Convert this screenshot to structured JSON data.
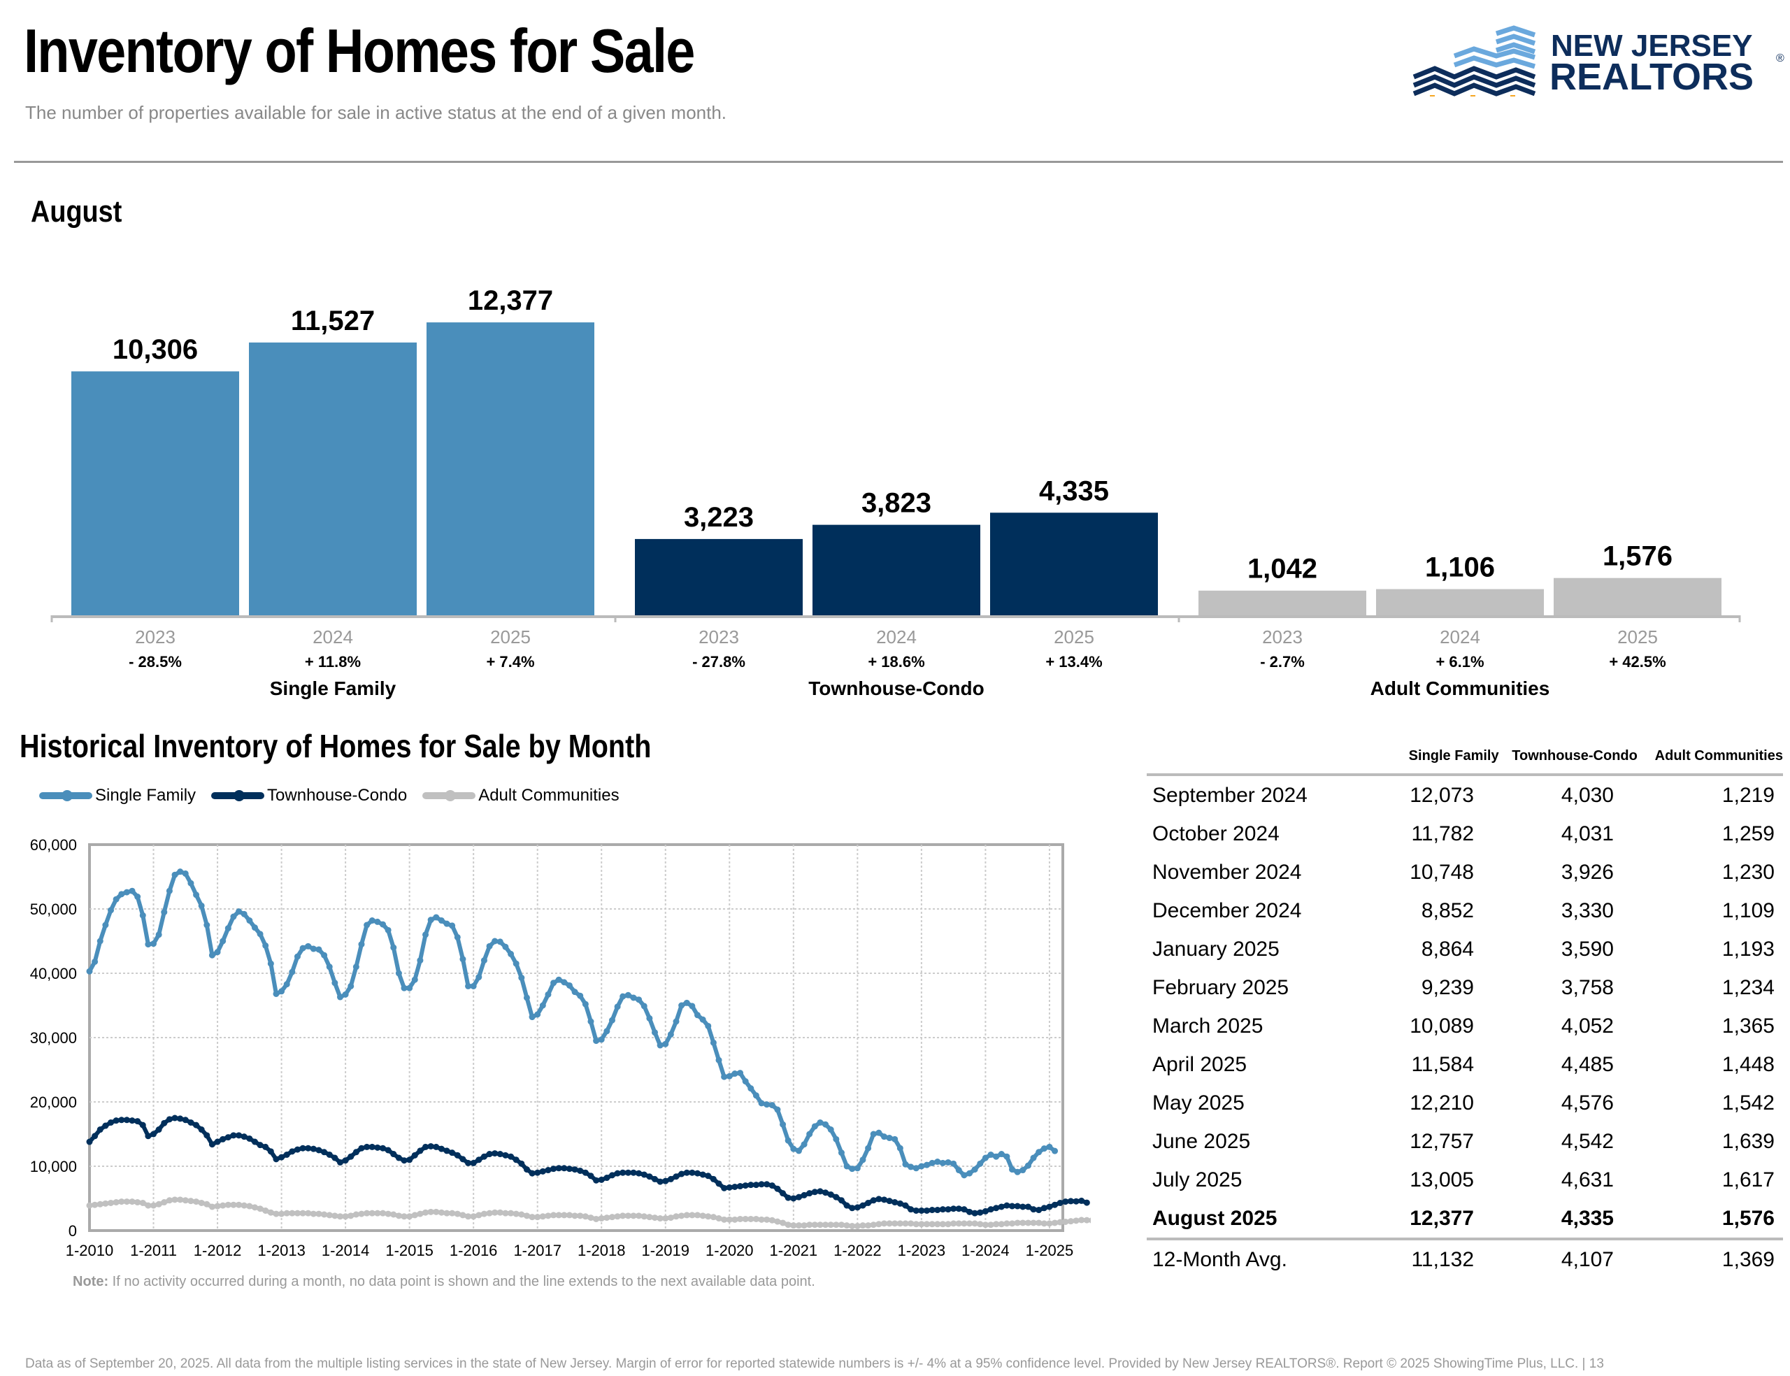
{
  "header": {
    "title": "Inventory of Homes for Sale",
    "subtitle": "The number of properties available for sale in active status at the end of a given month.",
    "logo_line1": "NEW JERSEY",
    "logo_line2": "REALTORS",
    "logo_mark": "®"
  },
  "colors": {
    "single_family": "#4a8ebb",
    "townhouse_condo": "#002f5b",
    "adult_communities": "#c0c0c0",
    "logo_navy": "#0d2d5b",
    "logo_light": "#6aa8dd",
    "logo_gold": "#f5a623"
  },
  "section_month": "August",
  "historical_title": "Historical Inventory of Homes for Sale by Month",
  "note_label": "Note:",
  "note_text": "If no activity occurred during a month, no data point is shown and the line extends to the next available data point.",
  "footer": "Data as of September 20, 2025. All data from the multiple listing services in the state of New Jersey. Margin of error for reported statewide numbers is +/- 4% at a 95% confidence level. Provided by New Jersey REALTORS®. Report © 2025 ShowingTime Plus, LLC. |  13",
  "chart_data": [
    {
      "type": "bar",
      "title": "August",
      "groups": [
        {
          "name": "Single Family",
          "color": "#4a8ebb",
          "categories": [
            "2023",
            "2024",
            "2025"
          ],
          "values": [
            10306,
            11527,
            12377
          ],
          "labels": [
            "10,306",
            "11,527",
            "12,377"
          ],
          "changes": [
            "- 28.5%",
            "+ 11.8%",
            "+ 7.4%"
          ]
        },
        {
          "name": "Townhouse-Condo",
          "color": "#002f5b",
          "categories": [
            "2023",
            "2024",
            "2025"
          ],
          "values": [
            3223,
            3823,
            4335
          ],
          "labels": [
            "3,223",
            "3,823",
            "4,335"
          ],
          "changes": [
            "- 27.8%",
            "+ 18.6%",
            "+ 13.4%"
          ]
        },
        {
          "name": "Adult Communities",
          "color": "#c0c0c0",
          "categories": [
            "2023",
            "2024",
            "2025"
          ],
          "values": [
            1042,
            1106,
            1576
          ],
          "labels": [
            "1,042",
            "1,106",
            "1,576"
          ],
          "changes": [
            "- 2.7%",
            "+ 6.1%",
            "+ 42.5%"
          ]
        }
      ],
      "ylim": [
        0,
        13000
      ]
    },
    {
      "type": "line",
      "title": "Historical Inventory of Homes for Sale by Month",
      "x_start": "1-2010",
      "x_end": "8-2025",
      "xticks": [
        "1-2010",
        "1-2011",
        "1-2012",
        "1-2013",
        "1-2014",
        "1-2015",
        "1-2016",
        "1-2017",
        "1-2018",
        "1-2019",
        "1-2020",
        "1-2021",
        "1-2022",
        "1-2023",
        "1-2024",
        "1-2025"
      ],
      "yticks": [
        "0",
        "10,000",
        "20,000",
        "30,000",
        "40,000",
        "50,000",
        "60,000"
      ],
      "ylim": [
        0,
        60000
      ],
      "legend": "top-left",
      "grid": true,
      "series": [
        {
          "name": "Single Family",
          "color": "#4a8ebb",
          "values": [
            40300,
            41800,
            45000,
            47500,
            49800,
            51500,
            52300,
            52600,
            52800,
            51900,
            49000,
            44500,
            44600,
            46000,
            49500,
            52800,
            55300,
            55800,
            55500,
            54000,
            52200,
            50500,
            47500,
            42800,
            43300,
            45000,
            47000,
            48800,
            49600,
            49200,
            48200,
            47100,
            46100,
            44300,
            41500,
            36800,
            37200,
            38300,
            40200,
            42600,
            43900,
            44200,
            43800,
            43700,
            42800,
            41000,
            38500,
            36300,
            36700,
            38000,
            41000,
            44500,
            47500,
            48200,
            48000,
            47600,
            46700,
            44000,
            40000,
            37700,
            37700,
            39000,
            42000,
            46000,
            48300,
            48700,
            48200,
            47700,
            47400,
            45600,
            42200,
            38000,
            38000,
            39400,
            42000,
            44200,
            45000,
            44900,
            44100,
            43000,
            41500,
            39300,
            36200,
            33200,
            33600,
            35000,
            36700,
            38500,
            39000,
            38600,
            38100,
            37100,
            36500,
            35200,
            32500,
            29500,
            29700,
            31000,
            32700,
            34800,
            36400,
            36600,
            36200,
            35900,
            34900,
            33000,
            30800,
            28800,
            29000,
            30500,
            32500,
            35000,
            35400,
            34900,
            33500,
            32800,
            31800,
            29200,
            26500,
            23900,
            24000,
            24400,
            24500,
            23200,
            22100,
            21000,
            19800,
            19600,
            19500,
            18800,
            16500,
            14000,
            12700,
            12400,
            13400,
            15000,
            16200,
            16800,
            16500,
            15700,
            14200,
            12100,
            10000,
            9600,
            9700,
            11000,
            12800,
            15000,
            15200,
            14600,
            14400,
            14200,
            12800,
            10300,
            9900,
            9700,
            10000,
            10200,
            10500,
            10700,
            10500,
            10600,
            10400,
            9400,
            8600,
            8900,
            9500,
            10400,
            11300,
            11800,
            11500,
            11900,
            11500,
            9500,
            9100,
            9400,
            10100,
            11300,
            12200,
            12757,
            13005,
            12377
          ]
        },
        {
          "name": "Townhouse-Condo",
          "color": "#002f5b",
          "values": [
            13800,
            14700,
            15700,
            16300,
            16800,
            17100,
            17200,
            17200,
            17100,
            17000,
            16400,
            14700,
            15000,
            15700,
            16700,
            17300,
            17500,
            17400,
            17200,
            16800,
            16400,
            15700,
            14800,
            13400,
            13800,
            14200,
            14500,
            14800,
            14800,
            14600,
            14300,
            13800,
            13300,
            13000,
            12300,
            11100,
            11400,
            11800,
            12300,
            12600,
            12800,
            12800,
            12700,
            12500,
            12200,
            11800,
            11300,
            10600,
            10900,
            11500,
            12200,
            12800,
            13000,
            13000,
            12900,
            12800,
            12500,
            11900,
            11300,
            10900,
            11000,
            11700,
            12400,
            13000,
            13100,
            13000,
            12700,
            12400,
            12100,
            11700,
            11100,
            10500,
            10500,
            11000,
            11500,
            11900,
            12000,
            11900,
            11700,
            11500,
            11000,
            10400,
            9500,
            8900,
            9000,
            9200,
            9400,
            9600,
            9700,
            9700,
            9600,
            9500,
            9300,
            9000,
            8500,
            7800,
            7900,
            8200,
            8600,
            8900,
            9000,
            9000,
            9000,
            8900,
            8700,
            8400,
            8000,
            7600,
            7700,
            8000,
            8400,
            8800,
            9000,
            9000,
            8900,
            8700,
            8500,
            8000,
            7300,
            6600,
            6700,
            6800,
            6900,
            7000,
            7100,
            7100,
            7200,
            7200,
            7000,
            6500,
            5800,
            5100,
            5000,
            5200,
            5500,
            5800,
            6000,
            6100,
            5900,
            5600,
            5200,
            4700,
            3900,
            3500,
            3600,
            3900,
            4300,
            4700,
            4900,
            4800,
            4600,
            4400,
            4200,
            3900,
            3300,
            3100,
            3100,
            3100,
            3200,
            3200,
            3300,
            3300,
            3400,
            3400,
            3300,
            2900,
            2700,
            2800,
            3000,
            3300,
            3500,
            3700,
            3900,
            3800,
            3800,
            3700,
            3700,
            3300,
            3200,
            3500,
            3700,
            4000,
            4300,
            4500,
            4576,
            4542,
            4631,
            4335
          ]
        },
        {
          "name": "Adult Communities",
          "color": "#c0c0c0",
          "values": [
            3900,
            4000,
            4100,
            4200,
            4300,
            4400,
            4500,
            4500,
            4500,
            4400,
            4300,
            3900,
            3900,
            4100,
            4400,
            4700,
            4800,
            4800,
            4700,
            4600,
            4500,
            4300,
            4100,
            3700,
            3800,
            3900,
            4000,
            4000,
            4000,
            3900,
            3800,
            3600,
            3400,
            3100,
            2800,
            2600,
            2600,
            2700,
            2700,
            2700,
            2700,
            2700,
            2600,
            2600,
            2500,
            2400,
            2300,
            2200,
            2200,
            2300,
            2500,
            2600,
            2700,
            2700,
            2700,
            2700,
            2600,
            2500,
            2300,
            2200,
            2200,
            2400,
            2600,
            2800,
            2900,
            2900,
            2800,
            2700,
            2700,
            2600,
            2400,
            2200,
            2200,
            2400,
            2600,
            2700,
            2800,
            2800,
            2700,
            2700,
            2600,
            2500,
            2300,
            2100,
            2100,
            2200,
            2300,
            2400,
            2400,
            2400,
            2400,
            2300,
            2300,
            2200,
            2000,
            1800,
            1900,
            2000,
            2100,
            2200,
            2300,
            2300,
            2300,
            2300,
            2200,
            2100,
            2000,
            1900,
            1900,
            2000,
            2200,
            2300,
            2400,
            2400,
            2400,
            2300,
            2200,
            2100,
            1900,
            1700,
            1700,
            1700,
            1800,
            1800,
            1800,
            1800,
            1700,
            1700,
            1600,
            1400,
            1200,
            900,
            800,
            800,
            800,
            900,
            900,
            900,
            900,
            900,
            900,
            900,
            800,
            700,
            700,
            800,
            800,
            900,
            1000,
            1100,
            1100,
            1100,
            1100,
            1100,
            1100,
            1000,
            1000,
            1000,
            1000,
            1000,
            1000,
            1000,
            1100,
            1100,
            1100,
            1100,
            1100,
            1000,
            900,
            900,
            1000,
            1000,
            1100,
            1100,
            1200,
            1200,
            1200,
            1200,
            1200,
            1100,
            1100,
            1200,
            1300,
            1365,
            1448,
            1542,
            1639,
            1617,
            1576
          ]
        }
      ]
    }
  ],
  "table": {
    "headers": [
      "",
      "Single Family",
      "Townhouse-Condo",
      "Adult Communities"
    ],
    "rows": [
      [
        "September 2024",
        "12,073",
        "4,030",
        "1,219"
      ],
      [
        "October 2024",
        "11,782",
        "4,031",
        "1,259"
      ],
      [
        "November 2024",
        "10,748",
        "3,926",
        "1,230"
      ],
      [
        "December 2024",
        "8,852",
        "3,330",
        "1,109"
      ],
      [
        "January 2025",
        "8,864",
        "3,590",
        "1,193"
      ],
      [
        "February 2025",
        "9,239",
        "3,758",
        "1,234"
      ],
      [
        "March 2025",
        "10,089",
        "4,052",
        "1,365"
      ],
      [
        "April 2025",
        "11,584",
        "4,485",
        "1,448"
      ],
      [
        "May 2025",
        "12,210",
        "4,576",
        "1,542"
      ],
      [
        "June 2025",
        "12,757",
        "4,542",
        "1,639"
      ],
      [
        "July 2025",
        "13,005",
        "4,631",
        "1,617"
      ]
    ],
    "current_row": [
      "August 2025",
      "12,377",
      "4,335",
      "1,576"
    ],
    "avg_row": [
      "12-Month Avg.",
      "11,132",
      "4,107",
      "1,369"
    ]
  }
}
